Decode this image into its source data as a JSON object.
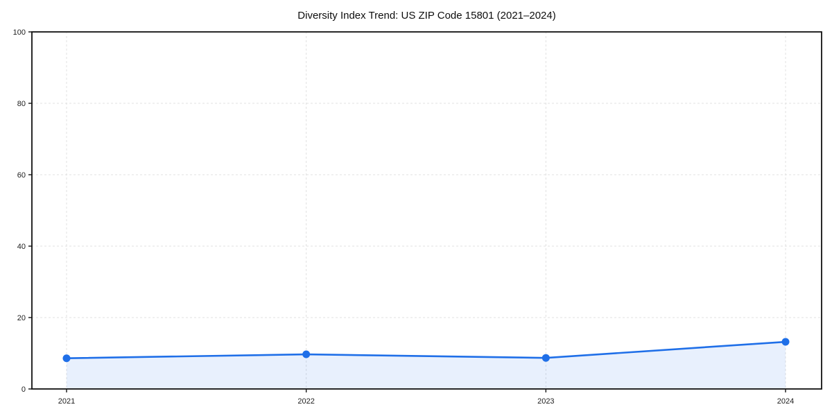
{
  "chart_data": {
    "type": "line",
    "title": "Diversity Index Trend: US ZIP Code 15801 (2021–2024)",
    "categories": [
      "2021",
      "2022",
      "2023",
      "2024"
    ],
    "series": [
      {
        "name": "Diversity Index",
        "values": [
          8.6,
          9.7,
          8.7,
          13.2
        ]
      }
    ],
    "xlabel": "",
    "ylabel": "",
    "ylim": [
      0,
      100
    ],
    "yticks": [
      0,
      20,
      40,
      60,
      80,
      100
    ],
    "grid": {
      "visible": true,
      "style": "dashed"
    },
    "legend": {
      "visible": false
    },
    "marker": "circle",
    "area_fill": true,
    "colors": {
      "line": "#1f6fe8",
      "marker": "#1f6fe8",
      "area_fill": "#1f6fe8",
      "area_fill_opacity": "0.10",
      "grid": "#e0e0e0",
      "frame": "#111111",
      "tick_text": "#1c1c1c",
      "title_text": "#0d0d0d",
      "background": "#ffffff"
    }
  }
}
